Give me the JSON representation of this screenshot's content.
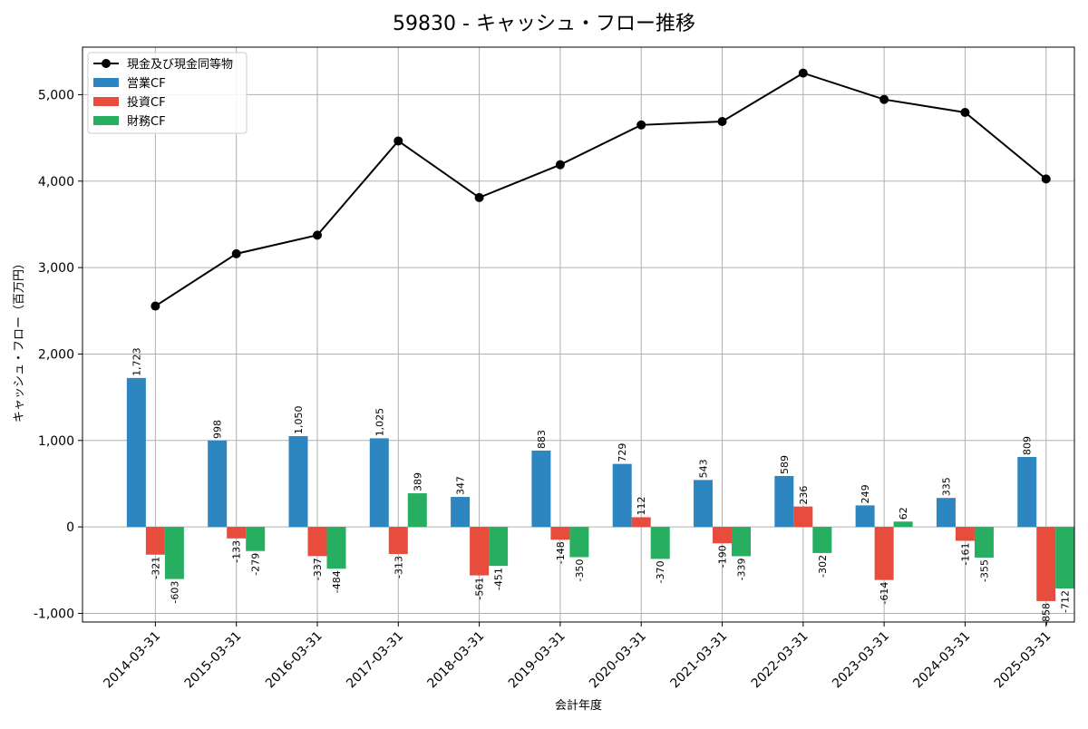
{
  "chart_data": {
    "type": "bar",
    "title": "59830 - キャッシュ・フロー推移",
    "xlabel": "会計年度",
    "ylabel": "キャッシュ・フロー（百万円）",
    "ylim": [
      -1100,
      5550
    ],
    "yticks": [
      -1000,
      0,
      1000,
      2000,
      3000,
      4000,
      5000
    ],
    "ytick_labels": [
      "-1,000",
      "0",
      "1,000",
      "2,000",
      "3,000",
      "4,000",
      "5,000"
    ],
    "grid": true,
    "legend_position": "top-left",
    "categories": [
      "2014-03-31",
      "2015-03-31",
      "2016-03-31",
      "2017-03-31",
      "2018-03-31",
      "2019-03-31",
      "2020-03-31",
      "2021-03-31",
      "2022-03-31",
      "2023-03-31",
      "2024-03-31",
      "2025-03-31"
    ],
    "series": [
      {
        "name": "営業CF",
        "type": "bar",
        "color": "#2e86c1",
        "values": [
          1723,
          998,
          1050,
          1025,
          347,
          883,
          729,
          543,
          589,
          249,
          335,
          809
        ],
        "labels": [
          "1,723",
          "998",
          "1,050",
          "1,025",
          "347",
          "883",
          "729",
          "543",
          "589",
          "249",
          "335",
          "809"
        ]
      },
      {
        "name": "投資CF",
        "type": "bar",
        "color": "#e74c3c",
        "values": [
          -321,
          -133,
          -337,
          -313,
          -561,
          -148,
          112,
          -190,
          236,
          -614,
          -161,
          -858
        ],
        "labels": [
          "-321",
          "-133",
          "-337",
          "-313",
          "-561",
          "-148",
          "112",
          "-190",
          "236",
          "-614",
          "-161",
          "-858"
        ]
      },
      {
        "name": "財務CF",
        "type": "bar",
        "color": "#27ae60",
        "values": [
          -603,
          -279,
          -484,
          389,
          -451,
          -350,
          -370,
          -339,
          -302,
          62,
          -355,
          -712
        ],
        "labels": [
          "-603",
          "-279",
          "-484",
          "389",
          "-451",
          "-350",
          "-370",
          "-339",
          "-302",
          "62",
          "-355",
          "-712"
        ]
      },
      {
        "name": "現金及び現金同等物",
        "type": "line",
        "color": "#000000",
        "values": [
          2555,
          3160,
          3375,
          4465,
          3810,
          4190,
          4650,
          4690,
          5250,
          4945,
          4795,
          4025
        ]
      }
    ]
  }
}
